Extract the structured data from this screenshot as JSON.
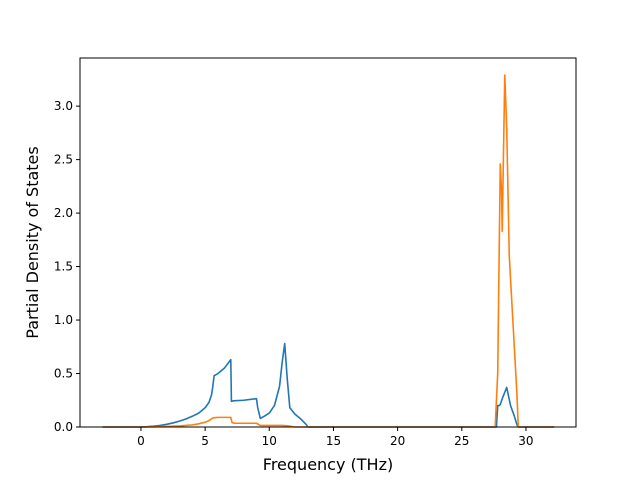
{
  "chart_data": {
    "type": "line",
    "xlabel": "Frequency (THz)",
    "ylabel": "Partial Density of States",
    "xlim": [
      -4.75,
      33.9
    ],
    "ylim": [
      0.0,
      3.45
    ],
    "xticks": [
      0,
      5,
      10,
      15,
      20,
      25,
      30
    ],
    "yticks": [
      0.0,
      0.5,
      1.0,
      1.5,
      2.0,
      2.5,
      3.0
    ],
    "xtick_labels": [
      "0",
      "5",
      "10",
      "15",
      "20",
      "25",
      "30"
    ],
    "ytick_labels": [
      "0.0",
      "0.5",
      "1.0",
      "1.5",
      "2.0",
      "2.5",
      "3.0"
    ],
    "grid": false,
    "legend": false,
    "series": [
      {
        "color": "#1f77b4",
        "x": [
          -3.0,
          0.0,
          0.5,
          1.0,
          1.5,
          2.0,
          2.5,
          3.0,
          3.5,
          4.0,
          4.5,
          5.0,
          5.3,
          5.5,
          5.6,
          5.7,
          6.0,
          6.5,
          7.0,
          7.05,
          7.2,
          8.0,
          9.0,
          9.1,
          9.3,
          9.6,
          10.0,
          10.4,
          10.8,
          11.0,
          11.2,
          11.4,
          11.6,
          12.0,
          12.5,
          12.9,
          13.0,
          14.0,
          16.0,
          20.0,
          25.0,
          27.7,
          27.8,
          27.9,
          28.0,
          28.2,
          28.5,
          28.8,
          29.1,
          29.3,
          29.4,
          30.0,
          32.2
        ],
        "y": [
          0.0,
          0.0,
          0.003,
          0.008,
          0.015,
          0.025,
          0.038,
          0.055,
          0.075,
          0.1,
          0.13,
          0.18,
          0.23,
          0.3,
          0.38,
          0.48,
          0.5,
          0.55,
          0.63,
          0.24,
          0.245,
          0.25,
          0.265,
          0.18,
          0.08,
          0.1,
          0.13,
          0.2,
          0.38,
          0.6,
          0.78,
          0.45,
          0.18,
          0.12,
          0.07,
          0.02,
          0.0,
          0.0,
          0.0,
          0.0,
          0.0,
          0.0,
          0.2,
          0.2,
          0.21,
          0.28,
          0.37,
          0.2,
          0.1,
          0.02,
          0.0,
          0.0,
          0.0
        ]
      },
      {
        "color": "#ff7f0e",
        "x": [
          -3.0,
          0.0,
          1.0,
          2.0,
          3.0,
          4.0,
          4.5,
          5.0,
          5.3,
          5.6,
          5.8,
          6.0,
          6.5,
          7.0,
          7.1,
          7.3,
          8.0,
          9.0,
          9.3,
          9.5,
          10.0,
          11.0,
          11.5,
          12.0,
          13.0,
          15.0,
          20.0,
          25.0,
          27.6,
          27.8,
          27.9,
          28.0,
          28.1,
          28.15,
          28.2,
          28.35,
          28.5,
          28.7,
          29.0,
          29.3,
          29.4,
          30.0,
          32.2
        ],
        "y": [
          0.0,
          0.0,
          0.002,
          0.005,
          0.01,
          0.02,
          0.03,
          0.045,
          0.06,
          0.085,
          0.088,
          0.09,
          0.09,
          0.09,
          0.04,
          0.035,
          0.035,
          0.035,
          0.015,
          0.015,
          0.015,
          0.015,
          0.01,
          0.0,
          0.0,
          0.0,
          0.0,
          0.0,
          0.0,
          0.5,
          1.5,
          2.46,
          2.2,
          1.83,
          2.2,
          3.29,
          2.8,
          1.6,
          0.95,
          0.3,
          0.0,
          0.0,
          0.0
        ]
      }
    ]
  }
}
